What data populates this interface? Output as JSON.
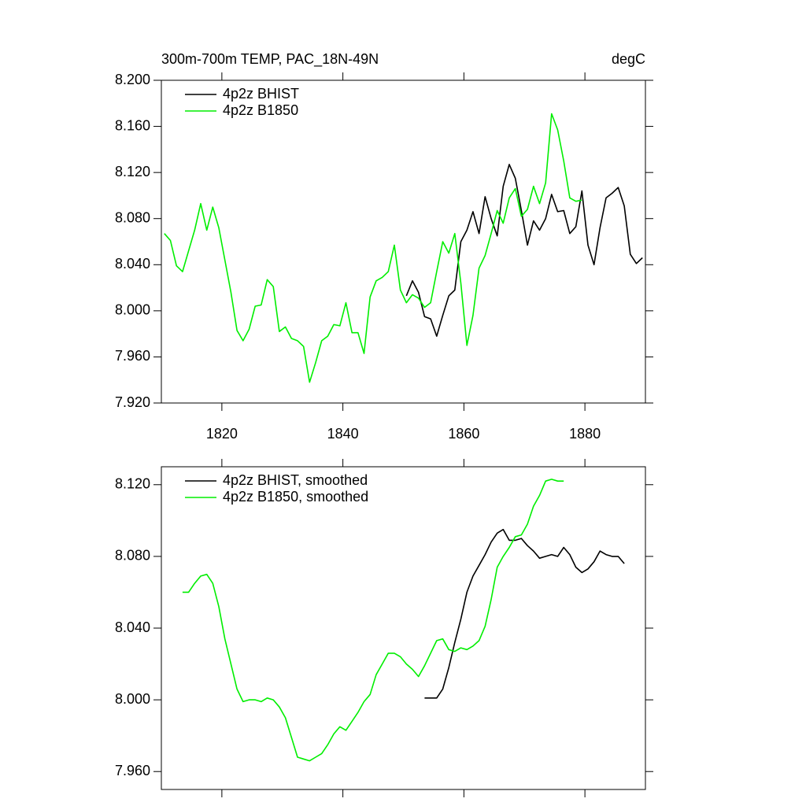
{
  "chart_data": [
    {
      "type": "line",
      "title": "300m-700m TEMP, PAC_18N-49N",
      "units": "degC",
      "xlim": [
        1810,
        1890
      ],
      "xticks": [
        1820,
        1840,
        1860,
        1880
      ],
      "ylim": [
        7.92,
        8.2
      ],
      "yticks": [
        {
          "value": 7.92,
          "label": "7.920"
        },
        {
          "value": 7.96,
          "label": "7.960"
        },
        {
          "value": 8.0,
          "label": "8.000"
        },
        {
          "value": 8.04,
          "label": "8.040"
        },
        {
          "value": 8.08,
          "label": "8.080"
        },
        {
          "value": 8.12,
          "label": "8.120"
        },
        {
          "value": 8.16,
          "label": "8.160"
        },
        {
          "value": 8.2,
          "label": "8.200"
        }
      ],
      "legend": "upper-left",
      "series": [
        {
          "name": "4p2z BHIST",
          "color": "#000000",
          "x": [
            1850.5,
            1851.5,
            1852.5,
            1853.5,
            1854.5,
            1855.5,
            1856.5,
            1857.5,
            1858.5,
            1859.5,
            1860.5,
            1861.5,
            1862.5,
            1863.5,
            1864.5,
            1865.5,
            1866.5,
            1867.5,
            1868.5,
            1869.5,
            1870.5,
            1871.5,
            1872.5,
            1873.5,
            1874.5,
            1875.5,
            1876.5,
            1877.5,
            1878.5,
            1879.5,
            1880.5,
            1881.5,
            1882.5,
            1883.5,
            1884.5,
            1885.5,
            1886.5,
            1887.5,
            1888.5,
            1889.5
          ],
          "values": [
            8.013,
            8.026,
            8.016,
            7.995,
            7.993,
            7.978,
            7.996,
            8.013,
            8.018,
            8.06,
            8.07,
            8.086,
            8.067,
            8.099,
            8.08,
            8.065,
            8.108,
            8.127,
            8.115,
            8.087,
            8.057,
            8.078,
            8.07,
            8.08,
            8.101,
            8.086,
            8.087,
            8.067,
            8.073,
            8.104,
            8.057,
            8.04,
            8.072,
            8.098,
            8.102,
            8.107,
            8.091,
            8.049,
            8.041,
            8.046
          ]
        },
        {
          "name": "4p2z B1850",
          "color": "#00ee00",
          "x": [
            1810.5,
            1811.5,
            1812.5,
            1813.5,
            1814.5,
            1815.5,
            1816.5,
            1817.5,
            1818.5,
            1819.5,
            1820.5,
            1821.5,
            1822.5,
            1823.5,
            1824.5,
            1825.5,
            1826.5,
            1827.5,
            1828.5,
            1829.5,
            1830.5,
            1831.5,
            1832.5,
            1833.5,
            1834.5,
            1835.5,
            1836.5,
            1837.5,
            1838.5,
            1839.5,
            1840.5,
            1841.5,
            1842.5,
            1843.5,
            1844.5,
            1845.5,
            1846.5,
            1847.5,
            1848.5,
            1849.5,
            1850.5,
            1851.5,
            1852.5,
            1853.5,
            1854.5,
            1855.5,
            1856.5,
            1857.5,
            1858.5,
            1859.5,
            1860.5,
            1861.5,
            1862.5,
            1863.5,
            1864.5,
            1865.5,
            1866.5,
            1867.5,
            1868.5,
            1869.5,
            1870.5,
            1871.5,
            1872.5,
            1873.5,
            1874.5,
            1875.5,
            1876.5,
            1877.5,
            1878.5,
            1879.5
          ],
          "values": [
            8.067,
            8.061,
            8.039,
            8.034,
            8.052,
            8.07,
            8.093,
            8.07,
            8.09,
            8.072,
            8.044,
            8.016,
            7.983,
            7.974,
            7.984,
            8.004,
            8.005,
            8.027,
            8.021,
            7.982,
            7.986,
            7.976,
            7.974,
            7.969,
            7.938,
            7.955,
            7.974,
            7.978,
            7.988,
            7.987,
            8.007,
            7.981,
            7.981,
            7.963,
            8.012,
            8.026,
            8.029,
            8.034,
            8.057,
            8.018,
            8.007,
            8.014,
            8.011,
            8.003,
            8.007,
            8.034,
            8.06,
            8.05,
            8.067,
            8.024,
            7.97,
            7.996,
            8.037,
            8.048,
            8.067,
            8.087,
            8.076,
            8.098,
            8.106,
            8.082,
            8.088,
            8.108,
            8.093,
            8.111,
            8.171,
            8.157,
            8.13,
            8.098,
            8.095,
            8.096
          ]
        }
      ]
    },
    {
      "type": "line",
      "xlim": [
        1810,
        1890
      ],
      "xticks": [
        1820,
        1840,
        1860,
        1880
      ],
      "ylim": [
        7.95,
        8.13
      ],
      "yticks": [
        {
          "value": 7.96,
          "label": "7.960"
        },
        {
          "value": 8.0,
          "label": "8.000"
        },
        {
          "value": 8.04,
          "label": "8.040"
        },
        {
          "value": 8.08,
          "label": "8.080"
        },
        {
          "value": 8.12,
          "label": "8.120"
        }
      ],
      "legend": "upper-left",
      "series": [
        {
          "name": "4p2z BHIST, smoothed",
          "color": "#000000",
          "x": [
            1853.5,
            1854.5,
            1855.5,
            1856.5,
            1857.5,
            1858.5,
            1859.5,
            1860.5,
            1861.5,
            1862.5,
            1863.5,
            1864.5,
            1865.5,
            1866.5,
            1867.5,
            1868.5,
            1869.5,
            1870.5,
            1871.5,
            1872.5,
            1873.5,
            1874.5,
            1875.5,
            1876.5,
            1877.5,
            1878.5,
            1879.5,
            1880.5,
            1881.5,
            1882.5,
            1883.5,
            1884.5,
            1885.5,
            1886.5
          ],
          "values": [
            8.001,
            8.001,
            8.001,
            8.006,
            8.018,
            8.032,
            8.045,
            8.06,
            8.069,
            8.075,
            8.081,
            8.088,
            8.093,
            8.095,
            8.089,
            8.089,
            8.09,
            8.086,
            8.083,
            8.079,
            8.08,
            8.081,
            8.08,
            8.085,
            8.081,
            8.074,
            8.071,
            8.073,
            8.077,
            8.083,
            8.081,
            8.08,
            8.08,
            8.076
          ]
        },
        {
          "name": "4p2z B1850, smoothed",
          "color": "#00ee00",
          "x": [
            1813.5,
            1814.5,
            1815.5,
            1816.5,
            1817.5,
            1818.5,
            1819.5,
            1820.5,
            1821.5,
            1822.5,
            1823.5,
            1824.5,
            1825.5,
            1826.5,
            1827.5,
            1828.5,
            1829.5,
            1830.5,
            1831.5,
            1832.5,
            1833.5,
            1834.5,
            1835.5,
            1836.5,
            1837.5,
            1838.5,
            1839.5,
            1840.5,
            1841.5,
            1842.5,
            1843.5,
            1844.5,
            1845.5,
            1846.5,
            1847.5,
            1848.5,
            1849.5,
            1850.5,
            1851.5,
            1852.5,
            1853.5,
            1854.5,
            1855.5,
            1856.5,
            1857.5,
            1858.5,
            1859.5,
            1860.5,
            1861.5,
            1862.5,
            1863.5,
            1864.5,
            1865.5,
            1866.5,
            1867.5,
            1868.5,
            1869.5,
            1870.5,
            1871.5,
            1872.5,
            1873.5,
            1874.5,
            1875.5,
            1876.5
          ],
          "values": [
            8.06,
            8.06,
            8.065,
            8.069,
            8.07,
            8.065,
            8.052,
            8.034,
            8.02,
            8.006,
            7.999,
            8.0,
            8.0,
            7.999,
            8.001,
            8.0,
            7.996,
            7.99,
            7.979,
            7.968,
            7.967,
            7.966,
            7.968,
            7.97,
            7.975,
            7.981,
            7.985,
            7.983,
            7.988,
            7.993,
            7.999,
            8.003,
            8.014,
            8.02,
            8.026,
            8.026,
            8.024,
            8.02,
            8.017,
            8.013,
            8.019,
            8.026,
            8.033,
            8.034,
            8.028,
            8.027,
            8.029,
            8.028,
            8.03,
            8.033,
            8.041,
            8.056,
            8.074,
            8.08,
            8.085,
            8.091,
            8.092,
            8.098,
            8.108,
            8.114,
            8.122,
            8.123,
            8.122,
            8.122
          ]
        }
      ]
    }
  ]
}
